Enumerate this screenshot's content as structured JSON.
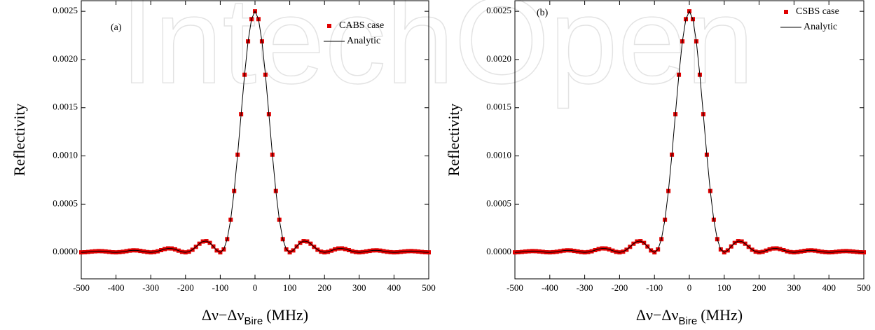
{
  "watermark": "IntechOpen",
  "chart_data": [
    {
      "type": "scatter",
      "label": "(a)",
      "ylabel": "Reflectivity",
      "xlabel": "Δν−Δν",
      "xlabel_sub": "Bire",
      "xlabel_unit": "(MHz)",
      "xlim": [
        -500,
        500
      ],
      "ylim": [
        -0.000275,
        0.00261
      ],
      "xticks": [
        -500,
        -400,
        -300,
        -200,
        -100,
        0,
        100,
        200,
        300,
        400,
        500
      ],
      "yticks": [
        {
          "value": 0,
          "label": "0.0000"
        },
        {
          "value": 0.0005,
          "label": "0.0005"
        },
        {
          "value": 0.001,
          "label": "0.0010"
        },
        {
          "value": 0.0015,
          "label": "0.0015"
        },
        {
          "value": 0.002,
          "label": "0.0020"
        },
        {
          "value": 0.0025,
          "label": "0.0025"
        }
      ],
      "legend": "upper right",
      "x": [
        -500,
        -490,
        -480,
        -470,
        -460,
        -450,
        -440,
        -430,
        -420,
        -410,
        -400,
        -390,
        -380,
        -370,
        -360,
        -350,
        -340,
        -330,
        -320,
        -310,
        -300,
        -290,
        -280,
        -270,
        -260,
        -250,
        -240,
        -230,
        -220,
        -210,
        -200,
        -190,
        -180,
        -170,
        -160,
        -150,
        -140,
        -130,
        -120,
        -110,
        -100,
        -90,
        -80,
        -70,
        -60,
        -50,
        -40,
        -30,
        -20,
        -10,
        0,
        10,
        20,
        30,
        40,
        50,
        60,
        70,
        80,
        90,
        100,
        110,
        120,
        130,
        140,
        150,
        160,
        170,
        180,
        190,
        200,
        210,
        220,
        230,
        240,
        250,
        260,
        270,
        280,
        290,
        300,
        310,
        320,
        330,
        340,
        350,
        360,
        370,
        380,
        390,
        400,
        410,
        420,
        430,
        440,
        450,
        460,
        470,
        480,
        490,
        500
      ],
      "series": [
        {
          "name": "CABS case",
          "kind": "scatter",
          "color": "#e00000",
          "values": [
            0,
            1e-06,
            4e-06,
            8e-06,
            1.1e-05,
            1.3e-05,
            1.2e-05,
            9e-06,
            5e-06,
            1e-06,
            0,
            2e-06,
            6e-06,
            1.2e-05,
            1.8e-05,
            2.1e-05,
            2e-05,
            1.5e-05,
            9e-06,
            3e-06,
            0,
            3e-06,
            1.1e-05,
            2.3e-05,
            3.4e-05,
            4.1e-05,
            4e-05,
            3.1e-05,
            1.8e-05,
            5e-06,
            0,
            7e-06,
            2.7e-05,
            5.7e-05,
            9e-05,
            0.000113,
            0.000117,
            9.8e-05,
            6.1e-05,
            2e-05,
            0,
            3e-05,
            0.000137,
            0.000338,
            0.000636,
            0.001013,
            0.001432,
            0.001842,
            0.002188,
            0.002419,
            0.0025,
            0.002419,
            0.002188,
            0.001842,
            0.001432,
            0.001013,
            0.000636,
            0.000338,
            0.000137,
            3e-05,
            0,
            2e-05,
            6.1e-05,
            9.8e-05,
            0.000117,
            0.000113,
            9e-05,
            5.7e-05,
            2.7e-05,
            7e-06,
            0,
            5e-06,
            1.8e-05,
            3.1e-05,
            4e-05,
            4.1e-05,
            3.4e-05,
            2.3e-05,
            1.1e-05,
            3e-06,
            0,
            3e-06,
            9e-06,
            1.5e-05,
            2e-05,
            2.1e-05,
            1.8e-05,
            1.2e-05,
            6e-06,
            2e-06,
            0,
            1e-06,
            5e-06,
            9e-06,
            1.2e-05,
            1.3e-05,
            1.1e-05,
            8e-06,
            4e-06,
            1e-06,
            0
          ]
        },
        {
          "name": "Analytic",
          "kind": "line",
          "color": "#000000",
          "values": [
            0,
            1e-06,
            4e-06,
            8e-06,
            1.1e-05,
            1.3e-05,
            1.2e-05,
            9e-06,
            5e-06,
            1e-06,
            0,
            2e-06,
            6e-06,
            1.2e-05,
            1.8e-05,
            2.1e-05,
            2e-05,
            1.5e-05,
            9e-06,
            3e-06,
            0,
            3e-06,
            1.1e-05,
            2.3e-05,
            3.4e-05,
            4.1e-05,
            4e-05,
            3.1e-05,
            1.8e-05,
            5e-06,
            0,
            7e-06,
            2.7e-05,
            5.7e-05,
            9e-05,
            0.000113,
            0.000117,
            9.8e-05,
            6.1e-05,
            2e-05,
            0,
            3e-05,
            0.000137,
            0.000338,
            0.000636,
            0.001013,
            0.001432,
            0.001842,
            0.002188,
            0.002419,
            0.0025,
            0.002419,
            0.002188,
            0.001842,
            0.001432,
            0.001013,
            0.000636,
            0.000338,
            0.000137,
            3e-05,
            0,
            2e-05,
            6.1e-05,
            9.8e-05,
            0.000117,
            0.000113,
            9e-05,
            5.7e-05,
            2.7e-05,
            7e-06,
            0,
            5e-06,
            1.8e-05,
            3.1e-05,
            4e-05,
            4.1e-05,
            3.4e-05,
            2.3e-05,
            1.1e-05,
            3e-06,
            0,
            3e-06,
            9e-06,
            1.5e-05,
            2e-05,
            2.1e-05,
            1.8e-05,
            1.2e-05,
            6e-06,
            2e-06,
            0,
            1e-06,
            5e-06,
            9e-06,
            1.2e-05,
            1.3e-05,
            1.1e-05,
            8e-06,
            4e-06,
            1e-06,
            0
          ]
        }
      ]
    },
    {
      "type": "scatter",
      "label": "(b)",
      "ylabel": "Reflectivity",
      "xlabel": "Δν−Δν",
      "xlabel_sub": "Bire",
      "xlabel_unit": "(MHz)",
      "xlim": [
        -500,
        500
      ],
      "ylim": [
        -0.000275,
        0.00261
      ],
      "xticks": [
        -500,
        -400,
        -300,
        -200,
        -100,
        0,
        100,
        200,
        300,
        400,
        500
      ],
      "yticks": [
        {
          "value": 0,
          "label": "0.0000"
        },
        {
          "value": 0.0005,
          "label": "0.0005"
        },
        {
          "value": 0.001,
          "label": "0.0010"
        },
        {
          "value": 0.0015,
          "label": "0.0015"
        },
        {
          "value": 0.002,
          "label": "0.0020"
        },
        {
          "value": 0.0025,
          "label": "0.0025"
        }
      ],
      "legend": "upper right",
      "x": [
        -500,
        -490,
        -480,
        -470,
        -460,
        -450,
        -440,
        -430,
        -420,
        -410,
        -400,
        -390,
        -380,
        -370,
        -360,
        -350,
        -340,
        -330,
        -320,
        -310,
        -300,
        -290,
        -280,
        -270,
        -260,
        -250,
        -240,
        -230,
        -220,
        -210,
        -200,
        -190,
        -180,
        -170,
        -160,
        -150,
        -140,
        -130,
        -120,
        -110,
        -100,
        -90,
        -80,
        -70,
        -60,
        -50,
        -40,
        -30,
        -20,
        -10,
        0,
        10,
        20,
        30,
        40,
        50,
        60,
        70,
        80,
        90,
        100,
        110,
        120,
        130,
        140,
        150,
        160,
        170,
        180,
        190,
        200,
        210,
        220,
        230,
        240,
        250,
        260,
        270,
        280,
        290,
        300,
        310,
        320,
        330,
        340,
        350,
        360,
        370,
        380,
        390,
        400,
        410,
        420,
        430,
        440,
        450,
        460,
        470,
        480,
        490,
        500
      ],
      "series": [
        {
          "name": "CSBS case",
          "kind": "scatter",
          "color": "#e00000",
          "values": [
            0,
            1e-06,
            4e-06,
            8e-06,
            1.1e-05,
            1.3e-05,
            1.2e-05,
            9e-06,
            5e-06,
            1e-06,
            0,
            2e-06,
            6e-06,
            1.2e-05,
            1.8e-05,
            2.1e-05,
            2e-05,
            1.5e-05,
            9e-06,
            3e-06,
            0,
            3e-06,
            1.1e-05,
            2.3e-05,
            3.4e-05,
            4.1e-05,
            4e-05,
            3.1e-05,
            1.8e-05,
            5e-06,
            0,
            7e-06,
            2.7e-05,
            5.7e-05,
            9e-05,
            0.000113,
            0.000117,
            9.8e-05,
            6.1e-05,
            2e-05,
            0,
            3e-05,
            0.000137,
            0.000338,
            0.000636,
            0.001013,
            0.001432,
            0.001842,
            0.002188,
            0.002419,
            0.0025,
            0.002419,
            0.002188,
            0.001842,
            0.001432,
            0.001013,
            0.000636,
            0.000338,
            0.000137,
            3e-05,
            0,
            2e-05,
            6.1e-05,
            9.8e-05,
            0.000117,
            0.000113,
            9e-05,
            5.7e-05,
            2.7e-05,
            7e-06,
            0,
            5e-06,
            1.8e-05,
            3.1e-05,
            4e-05,
            4.1e-05,
            3.4e-05,
            2.3e-05,
            1.1e-05,
            3e-06,
            0,
            3e-06,
            9e-06,
            1.5e-05,
            2e-05,
            2.1e-05,
            1.8e-05,
            1.2e-05,
            6e-06,
            2e-06,
            0,
            1e-06,
            5e-06,
            9e-06,
            1.2e-05,
            1.3e-05,
            1.1e-05,
            8e-06,
            4e-06,
            1e-06,
            0
          ]
        },
        {
          "name": "Analytic",
          "kind": "line",
          "color": "#000000",
          "values": [
            0,
            1e-06,
            4e-06,
            8e-06,
            1.1e-05,
            1.3e-05,
            1.2e-05,
            9e-06,
            5e-06,
            1e-06,
            0,
            2e-06,
            6e-06,
            1.2e-05,
            1.8e-05,
            2.1e-05,
            2e-05,
            1.5e-05,
            9e-06,
            3e-06,
            0,
            3e-06,
            1.1e-05,
            2.3e-05,
            3.4e-05,
            4.1e-05,
            4e-05,
            3.1e-05,
            1.8e-05,
            5e-06,
            0,
            7e-06,
            2.7e-05,
            5.7e-05,
            9e-05,
            0.000113,
            0.000117,
            9.8e-05,
            6.1e-05,
            2e-05,
            0,
            3e-05,
            0.000137,
            0.000338,
            0.000636,
            0.001013,
            0.001432,
            0.001842,
            0.002188,
            0.002419,
            0.0025,
            0.002419,
            0.002188,
            0.001842,
            0.001432,
            0.001013,
            0.000636,
            0.000338,
            0.000137,
            3e-05,
            0,
            2e-05,
            6.1e-05,
            9.8e-05,
            0.000117,
            0.000113,
            9e-05,
            5.7e-05,
            2.7e-05,
            7e-06,
            0,
            5e-06,
            1.8e-05,
            3.1e-05,
            4e-05,
            4.1e-05,
            3.4e-05,
            2.3e-05,
            1.1e-05,
            3e-06,
            0,
            3e-06,
            9e-06,
            1.5e-05,
            2e-05,
            2.1e-05,
            1.8e-05,
            1.2e-05,
            6e-06,
            2e-06,
            0,
            1e-06,
            5e-06,
            9e-06,
            1.2e-05,
            1.3e-05,
            1.1e-05,
            8e-06,
            4e-06,
            1e-06,
            0
          ]
        }
      ]
    }
  ]
}
